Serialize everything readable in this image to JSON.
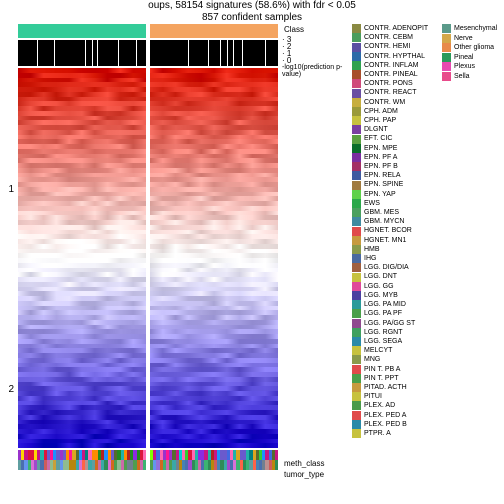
{
  "title_line1": "oups, 58154 signatures (58.6%) with fdr < 0.05",
  "title_line2": "857 confident samples",
  "axis_group_labels": [
    "1",
    "2"
  ],
  "class_label": "Class",
  "class_scale_labels": [
    "3",
    "2",
    "1",
    "0"
  ],
  "log10_label": "-log10(prediction p-value)",
  "class_bar_colors": [
    "#33cc99",
    "#f4a460"
  ],
  "white_lines_left_pct": [
    15,
    28,
    52,
    58,
    62,
    78,
    92
  ],
  "white_lines_right_pct": [
    30,
    45,
    55,
    60,
    65,
    72,
    90
  ],
  "heatmap_top_color": "#d81200",
  "heatmap_mid_color": "#ffffff",
  "heatmap_bot_color": "#1400c8",
  "heatmap_rows": 80,
  "ann_row_labels": [
    "meth_class",
    "tumor_type"
  ],
  "ann_meth_colors": [
    "#b22222",
    "#228b22",
    "#1e90ff",
    "#ff69b4",
    "#ffd700",
    "#8a2be2",
    "#00ced1",
    "#ff8c00",
    "#556b2f",
    "#9932cc",
    "#20b2aa",
    "#dc143c",
    "#4169e1",
    "#32cd32",
    "#ff1493",
    "#daa520",
    "#008080",
    "#c71585",
    "#6a5acd",
    "#7fff00"
  ],
  "ann_tumor_colors": [
    "#4f9d4f",
    "#cb6aa9",
    "#4a6fae",
    "#c9a03a",
    "#3aa8a8",
    "#a04acb",
    "#cd5c5c",
    "#3cb371",
    "#4682b4",
    "#da70d6",
    "#b8860b",
    "#5f9ea0",
    "#9370db",
    "#ff6347",
    "#2e8b57",
    "#6495ed",
    "#d2691e",
    "#8fbc8f",
    "#bc8f8f",
    "#708090"
  ],
  "meth_legend": [
    {
      "c": "#8a8a42",
      "l": "CONTR. ADENOPIT"
    },
    {
      "c": "#4b9d5d",
      "l": "CONTR. CEBM"
    },
    {
      "c": "#5a4fa2",
      "l": "CONTR. HEMI"
    },
    {
      "c": "#2b6aa8",
      "l": "CONTR. HYPTHAL"
    },
    {
      "c": "#2fa24f",
      "l": "CONTR. INFLAM"
    },
    {
      "c": "#a84f2b",
      "l": "CONTR. PINEAL"
    },
    {
      "c": "#cf4a7a",
      "l": "CONTR. PONS"
    },
    {
      "c": "#6a4fa2",
      "l": "CONTR. REACT"
    },
    {
      "c": "#c7ae3e",
      "l": "CONTR. WM"
    },
    {
      "c": "#9a9a3a",
      "l": "CPH. ADM"
    },
    {
      "c": "#c7c23e",
      "l": "CPH. PAP"
    },
    {
      "c": "#7a3fa0",
      "l": "DLGNT"
    },
    {
      "c": "#5aa03f",
      "l": "EFT. CIC"
    },
    {
      "c": "#0a6e2a",
      "l": "EPN. MPE"
    },
    {
      "c": "#7a2fa0",
      "l": "EPN. PF A"
    },
    {
      "c": "#a32f64",
      "l": "EPN. PF B"
    },
    {
      "c": "#3f5aa0",
      "l": "EPN. RELA"
    },
    {
      "c": "#a07a3f",
      "l": "EPN. SPINE"
    },
    {
      "c": "#5fd14a",
      "l": "EPN. YAP"
    },
    {
      "c": "#2aa84a",
      "l": "EWS"
    },
    {
      "c": "#4aa05f",
      "l": "GBM. MES"
    },
    {
      "c": "#3f8aa0",
      "l": "GBM. MYCN"
    },
    {
      "c": "#e04a4a",
      "l": "HGNET. BCOR"
    },
    {
      "c": "#c79a3e",
      "l": "HGNET. MN1"
    },
    {
      "c": "#8a9a4a",
      "l": "HMB"
    },
    {
      "c": "#4a6aa0",
      "l": "IHG"
    },
    {
      "c": "#a05f3f",
      "l": "LGG. DIG/DIA"
    },
    {
      "c": "#c7c23e",
      "l": "LGG. DNT"
    },
    {
      "c": "#e04a9a",
      "l": "LGG. GG"
    },
    {
      "c": "#4a3fa0",
      "l": "LGG. MYB"
    },
    {
      "c": "#2a9a9a",
      "l": "LGG. PA MID"
    },
    {
      "c": "#4a9f4a",
      "l": "LGG. PA PF"
    },
    {
      "c": "#8f4a8f",
      "l": "LGG. PA/GG ST"
    },
    {
      "c": "#3fa05f",
      "l": "LGG. RGNT"
    },
    {
      "c": "#2a8aa8",
      "l": "LGG. SEGA"
    },
    {
      "c": "#c7c23e",
      "l": "MELCYT"
    },
    {
      "c": "#8a9a4a",
      "l": "MNG"
    },
    {
      "c": "#e04a4a",
      "l": "PIN T. PB A"
    },
    {
      "c": "#4a9f4a",
      "l": "PIN T. PPT"
    },
    {
      "c": "#c79a3e",
      "l": "PITAD. ACTH"
    },
    {
      "c": "#c7c23e",
      "l": "PITUI"
    },
    {
      "c": "#4a9a4a",
      "l": "PLEX. AD"
    },
    {
      "c": "#e04a4a",
      "l": "PLEX. PED A"
    },
    {
      "c": "#2a8aa8",
      "l": "PLEX. PED B"
    },
    {
      "c": "#c7c23e",
      "l": "PTPR. A"
    }
  ],
  "tumor_legend": [
    {
      "c": "#5a9a8a",
      "l": "Mesenchymal"
    },
    {
      "c": "#d4a84a",
      "l": "Nerve"
    },
    {
      "c": "#e88a4a",
      "l": "Other glioma"
    },
    {
      "c": "#2a9a5a",
      "l": "Pineal"
    },
    {
      "c": "#e84ab0",
      "l": "Plexus"
    },
    {
      "c": "#e84a8a",
      "l": "Sella"
    }
  ]
}
